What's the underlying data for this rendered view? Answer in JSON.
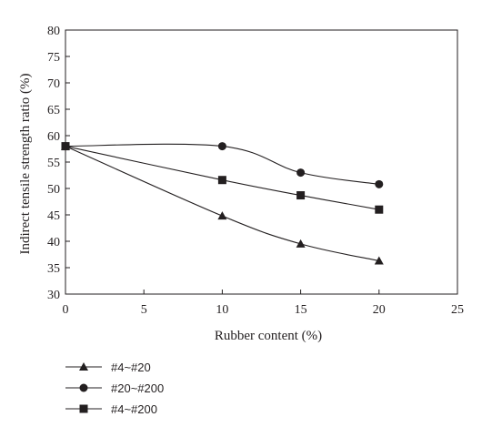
{
  "chart_data": {
    "type": "line",
    "title": "",
    "xlabel": "Rubber content (%)",
    "ylabel": "Indirect tensile strength ratio (%)",
    "xlim": [
      0,
      25
    ],
    "ylim": [
      30,
      80
    ],
    "xticks": [
      0,
      5,
      10,
      15,
      20,
      25
    ],
    "yticks": [
      30,
      35,
      40,
      45,
      50,
      55,
      60,
      65,
      70,
      75,
      80
    ],
    "grid": false,
    "legend_position": "bottom-left, below plot",
    "series": [
      {
        "name": "#4~#20",
        "marker": "triangle",
        "x": [
          0,
          10,
          15,
          20
        ],
        "y": [
          58,
          44.8,
          39.5,
          36.3
        ]
      },
      {
        "name": "#20~#200",
        "marker": "circle",
        "x": [
          0,
          10,
          15,
          20
        ],
        "y": [
          58,
          58,
          53,
          50.8
        ]
      },
      {
        "name": "#4~#200",
        "marker": "square",
        "x": [
          0,
          10,
          15,
          20
        ],
        "y": [
          58,
          51.6,
          48.7,
          46
        ]
      }
    ]
  }
}
